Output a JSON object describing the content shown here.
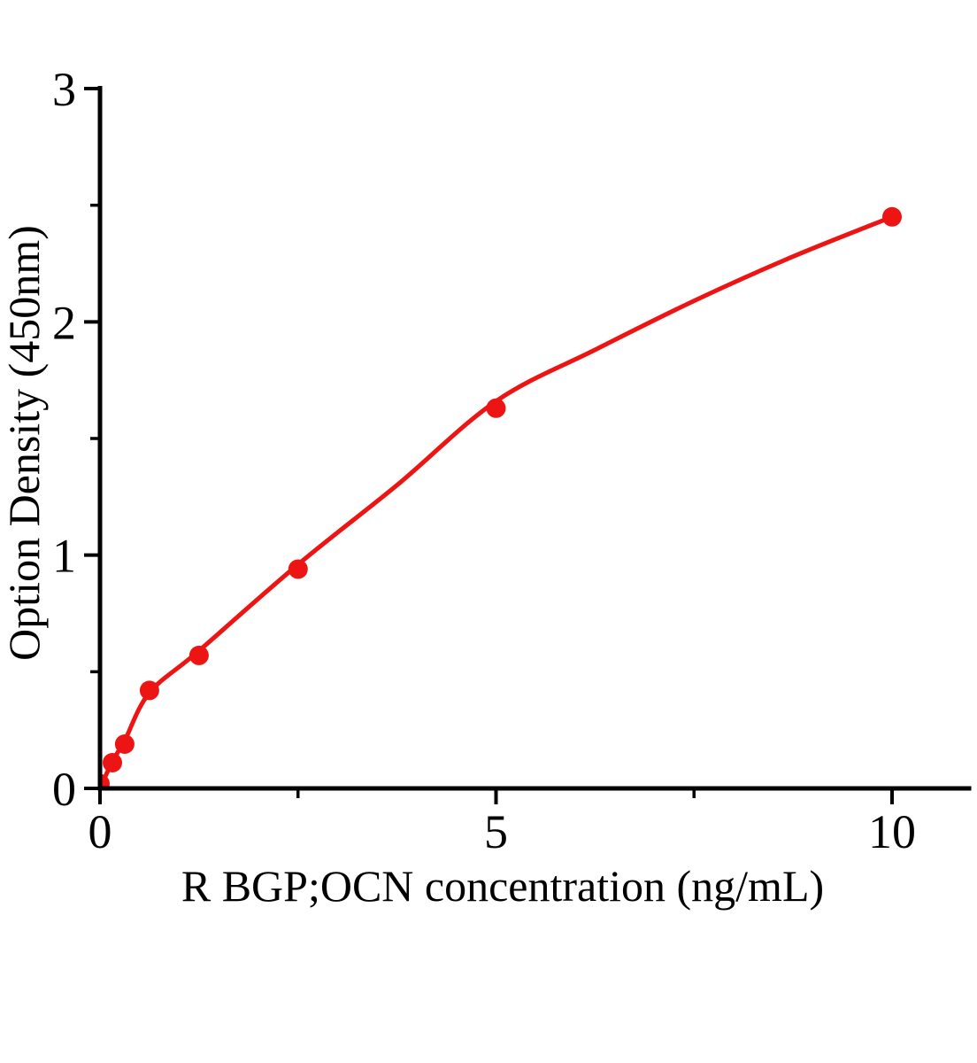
{
  "figure": {
    "background_color": "#ffffff",
    "plot_type_note": "ELISA standard curve"
  },
  "chart_data": {
    "type": "scatter",
    "title": "",
    "xlabel": "R BGP;OCN concentration (ng/mL)",
    "ylabel": "Option Density (450nm)",
    "xlim": [
      0,
      11
    ],
    "ylim": [
      0,
      3.02
    ],
    "grid": false,
    "legend": null,
    "axis_color": "#000000",
    "x_ticks": {
      "major": [
        {
          "value": 0,
          "label": "0"
        },
        {
          "value": 5,
          "label": "5"
        },
        {
          "value": 10,
          "label": "10"
        }
      ],
      "minor": [
        2.5,
        7.5
      ]
    },
    "y_ticks": {
      "major": [
        {
          "value": 0,
          "label": "0"
        },
        {
          "value": 1,
          "label": "1"
        },
        {
          "value": 2,
          "label": "2"
        },
        {
          "value": 3,
          "label": "3"
        }
      ],
      "minor": [
        0.5,
        1.5,
        2.5
      ]
    },
    "series": [
      {
        "name": "standard-curve",
        "color": "#ed1414",
        "marker": "circle",
        "points": [
          [
            0,
            0.02
          ],
          [
            0.156,
            0.11
          ],
          [
            0.312,
            0.19
          ],
          [
            0.625,
            0.42
          ],
          [
            1.25,
            0.57
          ],
          [
            2.5,
            0.94
          ],
          [
            5,
            1.63
          ],
          [
            10,
            2.45
          ]
        ],
        "fit_line": [
          [
            0,
            0.0
          ],
          [
            0.156,
            0.115
          ],
          [
            0.312,
            0.205
          ],
          [
            0.625,
            0.41
          ],
          [
            1.25,
            0.59
          ],
          [
            2.5,
            0.96
          ],
          [
            3.75,
            1.3
          ],
          [
            5,
            1.66
          ],
          [
            6.25,
            1.88
          ],
          [
            7.5,
            2.09
          ],
          [
            8.75,
            2.28
          ],
          [
            10,
            2.45
          ]
        ]
      }
    ]
  }
}
